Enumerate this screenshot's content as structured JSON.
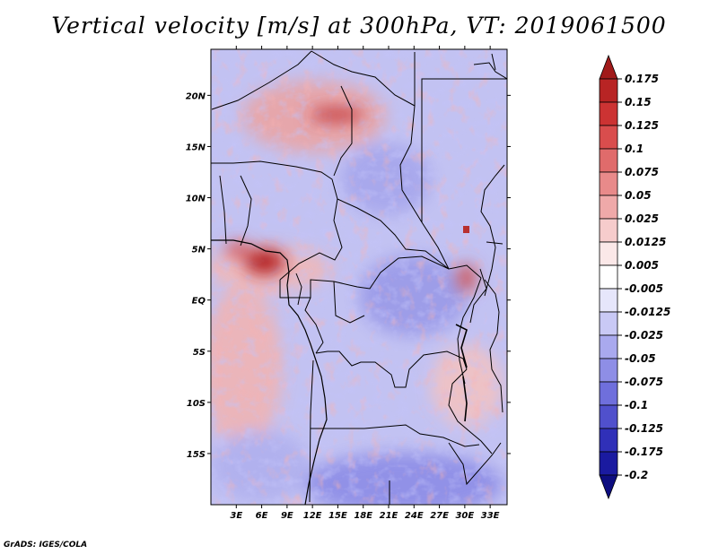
{
  "title": "Vertical velocity [m/s] at 300hPa, VT: 2019061500",
  "footer": "GrADS: IGES/COLA",
  "chart_data": {
    "type": "heatmap",
    "title": "Vertical velocity [m/s] at 300hPa, VT: 2019061500",
    "variable": "Vertical velocity",
    "units": "m/s",
    "level": "300hPa",
    "valid_time": "2019061500",
    "xlabel": "",
    "ylabel": "",
    "lon_range": [
      0,
      35
    ],
    "lat_range": [
      -20,
      24.5
    ],
    "x_ticks": [
      {
        "value": 3,
        "label": "3E"
      },
      {
        "value": 6,
        "label": "6E"
      },
      {
        "value": 9,
        "label": "9E"
      },
      {
        "value": 12,
        "label": "12E"
      },
      {
        "value": 15,
        "label": "15E"
      },
      {
        "value": 18,
        "label": "18E"
      },
      {
        "value": 21,
        "label": "21E"
      },
      {
        "value": 24,
        "label": "24E"
      },
      {
        "value": 27,
        "label": "27E"
      },
      {
        "value": 30,
        "label": "30E"
      },
      {
        "value": 33,
        "label": "33E"
      }
    ],
    "y_ticks": [
      {
        "value": 20,
        "label": "20N"
      },
      {
        "value": 15,
        "label": "15N"
      },
      {
        "value": 10,
        "label": "10N"
      },
      {
        "value": 5,
        "label": "5N"
      },
      {
        "value": 0,
        "label": "EQ"
      },
      {
        "value": -5,
        "label": "5S"
      },
      {
        "value": -10,
        "label": "10S"
      },
      {
        "value": -15,
        "label": "15S"
      }
    ],
    "colorbar": {
      "levels": [
        "0.175",
        "0.15",
        "0.125",
        "0.1",
        "0.075",
        "0.05",
        "0.025",
        "0.0125",
        "0.005",
        "-0.005",
        "-0.0125",
        "-0.025",
        "-0.05",
        "-0.075",
        "-0.1",
        "-0.125",
        "-0.175",
        "-0.2"
      ],
      "colors": [
        "#a11a1a",
        "#b82424",
        "#cc3333",
        "#d94d4d",
        "#e06b6b",
        "#e88a8a",
        "#efa9a9",
        "#f6cccc",
        "#fbe8e8",
        "#ffffff",
        "#e6e6fb",
        "#c9c9f5",
        "#a9a9ee",
        "#8e8ee6",
        "#6f6fdc",
        "#5050cc",
        "#3030b8",
        "#1a1aa0",
        "#0d0d80"
      ]
    },
    "notable_features": [
      {
        "label": "strong ascent",
        "lon": 5.5,
        "lat": 4.5,
        "sign": "positive"
      },
      {
        "label": "broad ascent",
        "lon": 3,
        "lat": -7,
        "sign": "positive"
      },
      {
        "label": "subsidence",
        "lon": 22,
        "lat": -17,
        "sign": "negative"
      },
      {
        "label": "subsidence",
        "lon": 20,
        "lat": 1,
        "sign": "negative"
      }
    ]
  }
}
